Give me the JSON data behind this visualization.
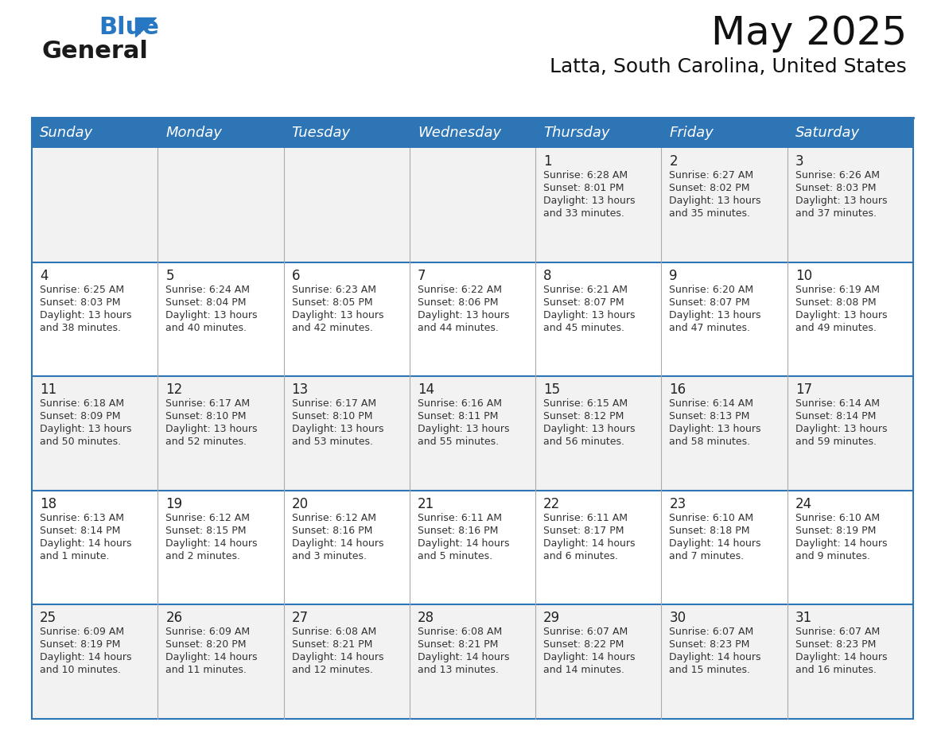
{
  "title": "May 2025",
  "subtitle": "Latta, South Carolina, United States",
  "header_bg_color": "#2E75B6",
  "header_text_color": "#FFFFFF",
  "cell_bg_color_odd": "#F2F2F2",
  "cell_bg_color_even": "#FFFFFF",
  "day_headers": [
    "Sunday",
    "Monday",
    "Tuesday",
    "Wednesday",
    "Thursday",
    "Friday",
    "Saturday"
  ],
  "days": [
    {
      "day": 1,
      "col": 4,
      "row": 0,
      "sunrise": "6:28 AM",
      "sunset": "8:01 PM",
      "daylight_h": "13 hours",
      "daylight_m": "and 33 minutes."
    },
    {
      "day": 2,
      "col": 5,
      "row": 0,
      "sunrise": "6:27 AM",
      "sunset": "8:02 PM",
      "daylight_h": "13 hours",
      "daylight_m": "and 35 minutes."
    },
    {
      "day": 3,
      "col": 6,
      "row": 0,
      "sunrise": "6:26 AM",
      "sunset": "8:03 PM",
      "daylight_h": "13 hours",
      "daylight_m": "and 37 minutes."
    },
    {
      "day": 4,
      "col": 0,
      "row": 1,
      "sunrise": "6:25 AM",
      "sunset": "8:03 PM",
      "daylight_h": "13 hours",
      "daylight_m": "and 38 minutes."
    },
    {
      "day": 5,
      "col": 1,
      "row": 1,
      "sunrise": "6:24 AM",
      "sunset": "8:04 PM",
      "daylight_h": "13 hours",
      "daylight_m": "and 40 minutes."
    },
    {
      "day": 6,
      "col": 2,
      "row": 1,
      "sunrise": "6:23 AM",
      "sunset": "8:05 PM",
      "daylight_h": "13 hours",
      "daylight_m": "and 42 minutes."
    },
    {
      "day": 7,
      "col": 3,
      "row": 1,
      "sunrise": "6:22 AM",
      "sunset": "8:06 PM",
      "daylight_h": "13 hours",
      "daylight_m": "and 44 minutes."
    },
    {
      "day": 8,
      "col": 4,
      "row": 1,
      "sunrise": "6:21 AM",
      "sunset": "8:07 PM",
      "daylight_h": "13 hours",
      "daylight_m": "and 45 minutes."
    },
    {
      "day": 9,
      "col": 5,
      "row": 1,
      "sunrise": "6:20 AM",
      "sunset": "8:07 PM",
      "daylight_h": "13 hours",
      "daylight_m": "and 47 minutes."
    },
    {
      "day": 10,
      "col": 6,
      "row": 1,
      "sunrise": "6:19 AM",
      "sunset": "8:08 PM",
      "daylight_h": "13 hours",
      "daylight_m": "and 49 minutes."
    },
    {
      "day": 11,
      "col": 0,
      "row": 2,
      "sunrise": "6:18 AM",
      "sunset": "8:09 PM",
      "daylight_h": "13 hours",
      "daylight_m": "and 50 minutes."
    },
    {
      "day": 12,
      "col": 1,
      "row": 2,
      "sunrise": "6:17 AM",
      "sunset": "8:10 PM",
      "daylight_h": "13 hours",
      "daylight_m": "and 52 minutes."
    },
    {
      "day": 13,
      "col": 2,
      "row": 2,
      "sunrise": "6:17 AM",
      "sunset": "8:10 PM",
      "daylight_h": "13 hours",
      "daylight_m": "and 53 minutes."
    },
    {
      "day": 14,
      "col": 3,
      "row": 2,
      "sunrise": "6:16 AM",
      "sunset": "8:11 PM",
      "daylight_h": "13 hours",
      "daylight_m": "and 55 minutes."
    },
    {
      "day": 15,
      "col": 4,
      "row": 2,
      "sunrise": "6:15 AM",
      "sunset": "8:12 PM",
      "daylight_h": "13 hours",
      "daylight_m": "and 56 minutes."
    },
    {
      "day": 16,
      "col": 5,
      "row": 2,
      "sunrise": "6:14 AM",
      "sunset": "8:13 PM",
      "daylight_h": "13 hours",
      "daylight_m": "and 58 minutes."
    },
    {
      "day": 17,
      "col": 6,
      "row": 2,
      "sunrise": "6:14 AM",
      "sunset": "8:14 PM",
      "daylight_h": "13 hours",
      "daylight_m": "and 59 minutes."
    },
    {
      "day": 18,
      "col": 0,
      "row": 3,
      "sunrise": "6:13 AM",
      "sunset": "8:14 PM",
      "daylight_h": "14 hours",
      "daylight_m": "and 1 minute."
    },
    {
      "day": 19,
      "col": 1,
      "row": 3,
      "sunrise": "6:12 AM",
      "sunset": "8:15 PM",
      "daylight_h": "14 hours",
      "daylight_m": "and 2 minutes."
    },
    {
      "day": 20,
      "col": 2,
      "row": 3,
      "sunrise": "6:12 AM",
      "sunset": "8:16 PM",
      "daylight_h": "14 hours",
      "daylight_m": "and 3 minutes."
    },
    {
      "day": 21,
      "col": 3,
      "row": 3,
      "sunrise": "6:11 AM",
      "sunset": "8:16 PM",
      "daylight_h": "14 hours",
      "daylight_m": "and 5 minutes."
    },
    {
      "day": 22,
      "col": 4,
      "row": 3,
      "sunrise": "6:11 AM",
      "sunset": "8:17 PM",
      "daylight_h": "14 hours",
      "daylight_m": "and 6 minutes."
    },
    {
      "day": 23,
      "col": 5,
      "row": 3,
      "sunrise": "6:10 AM",
      "sunset": "8:18 PM",
      "daylight_h": "14 hours",
      "daylight_m": "and 7 minutes."
    },
    {
      "day": 24,
      "col": 6,
      "row": 3,
      "sunrise": "6:10 AM",
      "sunset": "8:19 PM",
      "daylight_h": "14 hours",
      "daylight_m": "and 9 minutes."
    },
    {
      "day": 25,
      "col": 0,
      "row": 4,
      "sunrise": "6:09 AM",
      "sunset": "8:19 PM",
      "daylight_h": "14 hours",
      "daylight_m": "and 10 minutes."
    },
    {
      "day": 26,
      "col": 1,
      "row": 4,
      "sunrise": "6:09 AM",
      "sunset": "8:20 PM",
      "daylight_h": "14 hours",
      "daylight_m": "and 11 minutes."
    },
    {
      "day": 27,
      "col": 2,
      "row": 4,
      "sunrise": "6:08 AM",
      "sunset": "8:21 PM",
      "daylight_h": "14 hours",
      "daylight_m": "and 12 minutes."
    },
    {
      "day": 28,
      "col": 3,
      "row": 4,
      "sunrise": "6:08 AM",
      "sunset": "8:21 PM",
      "daylight_h": "14 hours",
      "daylight_m": "and 13 minutes."
    },
    {
      "day": 29,
      "col": 4,
      "row": 4,
      "sunrise": "6:07 AM",
      "sunset": "8:22 PM",
      "daylight_h": "14 hours",
      "daylight_m": "and 14 minutes."
    },
    {
      "day": 30,
      "col": 5,
      "row": 4,
      "sunrise": "6:07 AM",
      "sunset": "8:23 PM",
      "daylight_h": "14 hours",
      "daylight_m": "and 15 minutes."
    },
    {
      "day": 31,
      "col": 6,
      "row": 4,
      "sunrise": "6:07 AM",
      "sunset": "8:23 PM",
      "daylight_h": "14 hours",
      "daylight_m": "and 16 minutes."
    }
  ],
  "logo_color_general": "#1a1a1a",
  "logo_color_blue": "#2777C2",
  "title_fontsize": 36,
  "subtitle_fontsize": 18,
  "header_fontsize": 13,
  "day_num_fontsize": 12,
  "cell_text_fontsize": 9,
  "border_color": "#2E75B6",
  "line_color": "#AAAAAA",
  "fig_width": 11.88,
  "fig_height": 9.18,
  "dpi": 100
}
